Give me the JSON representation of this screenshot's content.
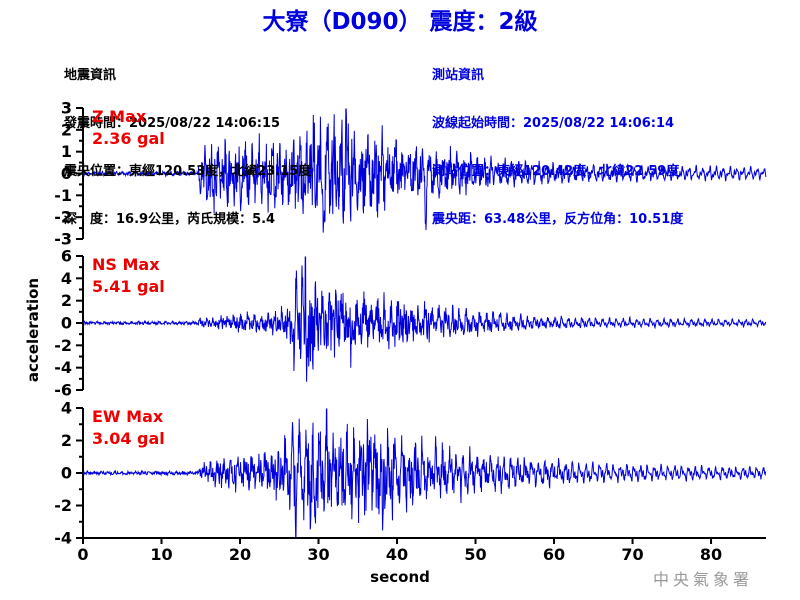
{
  "title": "大寮（D090） 震度：2級",
  "quake_info": {
    "heading": "地震資訊",
    "lines": [
      "發震時間：2025/08/22 14:06:15",
      "震央位置：東經120.53度，北緯23.15度",
      "深　度：16.9公里，芮氏規模：5.4"
    ]
  },
  "station_info": {
    "heading": "測站資訊",
    "lines": [
      "波線起始時間：2025/08/22 14:06:14",
      "測站位置：東經120.42度，北緯22.59度",
      "震央距：63.48公里，反方位角：10.51度"
    ]
  },
  "watermark": "中央氣象署",
  "colors": {
    "accent_blue": "#0000DD",
    "trace_blue": "#0000DD",
    "label_red": "#EE0000",
    "axis_black": "#000000",
    "watermark_gray": "#9A9A9A",
    "background": "#FFFFFF"
  },
  "chart_data": {
    "type": "line",
    "xlabel": "second",
    "ylabel": "acceleration",
    "unit": "gal",
    "xlim": [
      0,
      87
    ],
    "x_ticks": [
      0,
      10,
      20,
      30,
      40,
      50,
      60,
      70,
      80
    ],
    "grid": false,
    "traces": [
      {
        "name": "Z",
        "label": "Z Max",
        "max_label": "2.36 gal",
        "max_gal": 2.36,
        "ylim": [
          -3,
          3
        ],
        "y_major_ticks": [
          3,
          2,
          1,
          0,
          -1,
          -2,
          -3
        ],
        "y_minor_step": 0.5,
        "seed": 11,
        "envelope": [
          [
            0,
            0.07
          ],
          [
            14.6,
            0.08
          ],
          [
            15,
            0.85
          ],
          [
            16,
            1.15
          ],
          [
            18,
            1.2
          ],
          [
            22,
            1.15
          ],
          [
            25,
            1.2
          ],
          [
            27,
            1.5
          ],
          [
            28,
            1.8
          ],
          [
            29,
            2.0
          ],
          [
            30,
            2.1
          ],
          [
            31,
            1.8
          ],
          [
            33,
            1.8
          ],
          [
            35,
            1.5
          ],
          [
            37,
            1.4
          ],
          [
            40,
            1.2
          ],
          [
            44,
            1.0
          ],
          [
            48,
            0.85
          ],
          [
            52,
            0.65
          ],
          [
            56,
            0.55
          ],
          [
            60,
            0.5
          ],
          [
            66,
            0.45
          ],
          [
            72,
            0.4
          ],
          [
            80,
            0.38
          ],
          [
            87,
            0.32
          ]
        ],
        "spikes": [
          [
            28.9,
            2.36
          ],
          [
            30.7,
            -2.85
          ],
          [
            33.5,
            2.1
          ],
          [
            43.7,
            -2.2
          ]
        ]
      },
      {
        "name": "NS",
        "label": "NS Max",
        "max_label": "5.41 gal",
        "max_gal": 5.41,
        "ylim": [
          -6,
          6
        ],
        "y_major_ticks": [
          6,
          4,
          2,
          0,
          -2,
          -4,
          -6
        ],
        "y_minor_step": 1,
        "seed": 23,
        "envelope": [
          [
            0,
            0.1
          ],
          [
            14.6,
            0.11
          ],
          [
            15,
            0.4
          ],
          [
            17,
            0.5
          ],
          [
            20,
            0.6
          ],
          [
            23,
            0.65
          ],
          [
            25,
            0.8
          ],
          [
            26,
            1.3
          ],
          [
            27,
            2.2
          ],
          [
            28,
            3.6
          ],
          [
            28.6,
            4.4
          ],
          [
            29.4,
            3.2
          ],
          [
            30,
            2.6
          ],
          [
            31,
            2.2
          ],
          [
            32,
            2.4
          ],
          [
            33,
            2.6
          ],
          [
            34,
            2.2
          ],
          [
            36,
            2.0
          ],
          [
            38,
            1.9
          ],
          [
            40,
            1.75
          ],
          [
            42,
            1.6
          ],
          [
            45,
            1.35
          ],
          [
            48,
            1.1
          ],
          [
            52,
            0.9
          ],
          [
            56,
            0.75
          ],
          [
            60,
            0.6
          ],
          [
            66,
            0.5
          ],
          [
            72,
            0.45
          ],
          [
            80,
            0.4
          ],
          [
            87,
            0.35
          ]
        ],
        "spikes": [
          [
            26.9,
            -3.2
          ],
          [
            27.2,
            3.2
          ],
          [
            28.3,
            5.41
          ],
          [
            28.8,
            -5.9
          ],
          [
            32.9,
            3.0
          ],
          [
            34.1,
            -3.0
          ]
        ]
      },
      {
        "name": "EW",
        "label": "EW Max",
        "max_label": "3.04 gal",
        "max_gal": 3.04,
        "ylim": [
          -4,
          4
        ],
        "y_major_ticks": [
          4,
          2,
          0,
          -2,
          -4
        ],
        "y_minor_step": 1,
        "seed": 37,
        "envelope": [
          [
            0,
            0.08
          ],
          [
            14.6,
            0.1
          ],
          [
            15,
            0.45
          ],
          [
            17,
            0.6
          ],
          [
            19,
            0.75
          ],
          [
            21,
            0.9
          ],
          [
            23,
            1.0
          ],
          [
            25,
            1.3
          ],
          [
            26,
            1.9
          ],
          [
            27,
            2.3
          ],
          [
            28,
            2.2
          ],
          [
            29,
            2.5
          ],
          [
            30,
            2.4
          ],
          [
            31,
            2.1
          ],
          [
            32,
            1.8
          ],
          [
            33,
            1.9
          ],
          [
            35,
            2.0
          ],
          [
            36,
            2.3
          ],
          [
            37,
            2.2
          ],
          [
            38,
            2.0
          ],
          [
            40,
            1.8
          ],
          [
            42,
            1.6
          ],
          [
            45,
            1.5
          ],
          [
            48,
            1.35
          ],
          [
            52,
            1.15
          ],
          [
            56,
            0.95
          ],
          [
            60,
            0.85
          ],
          [
            65,
            0.7
          ],
          [
            70,
            0.6
          ],
          [
            78,
            0.5
          ],
          [
            87,
            0.4
          ]
        ],
        "spikes": [
          [
            27.1,
            -3.3
          ],
          [
            27.6,
            2.6
          ],
          [
            29.6,
            -3.35
          ],
          [
            31.0,
            2.3
          ],
          [
            36.7,
            3.04
          ],
          [
            38.2,
            -2.9
          ]
        ]
      }
    ]
  }
}
